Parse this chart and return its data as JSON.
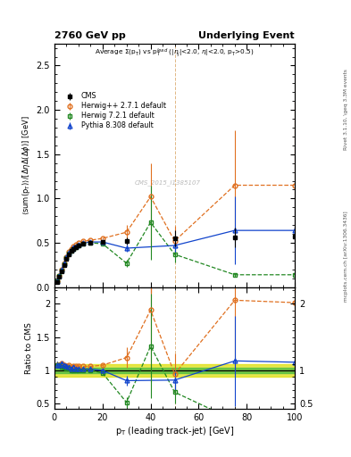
{
  "title_left": "2760 GeV pp",
  "title_right": "Underlying Event",
  "plot_title": "Average \\Sigma(p_{T}) vs p_{T}^{lead} (|\\eta_{j}|<2.0, \\eta|<2.0, p_{T}>0.5)",
  "ylabel_main": "\\langle sum(p_{T}) \\rangle / [\\Delta\\eta\\Delta(\\Delta\\phi)] [GeV]",
  "ylabel_ratio": "Ratio to CMS",
  "xlabel": "p_{T} (leading track-jet) [GeV]",
  "right_label_top": "Rivet 3.1.10, \\geq 3.3M events",
  "right_label_bottom": "mcplots.cern.ch [arXiv:1306.3436]",
  "watermark": "CMS_2015_I1385107",
  "xlim": [
    0,
    100
  ],
  "ylim_main": [
    0,
    2.75
  ],
  "ylim_ratio": [
    0.42,
    2.25
  ],
  "cms_data": {
    "x": [
      1,
      2,
      3,
      4,
      5,
      6,
      7,
      8,
      9,
      10,
      12,
      15,
      20,
      30,
      50,
      75,
      100
    ],
    "y": [
      0.06,
      0.12,
      0.18,
      0.25,
      0.32,
      0.37,
      0.41,
      0.43,
      0.45,
      0.47,
      0.49,
      0.5,
      0.51,
      0.52,
      0.55,
      0.56,
      0.57
    ],
    "yerr": [
      0.005,
      0.01,
      0.01,
      0.01,
      0.01,
      0.01,
      0.01,
      0.01,
      0.01,
      0.01,
      0.01,
      0.01,
      0.015,
      0.04,
      0.09,
      0.11,
      0.11
    ],
    "color": "#000000",
    "marker": "s",
    "label": "CMS"
  },
  "herwig_pp": {
    "x": [
      1,
      2,
      3,
      4,
      5,
      6,
      7,
      8,
      9,
      10,
      12,
      15,
      20,
      30,
      40,
      50,
      75,
      100
    ],
    "y": [
      0.065,
      0.13,
      0.2,
      0.27,
      0.34,
      0.4,
      0.43,
      0.46,
      0.48,
      0.5,
      0.52,
      0.53,
      0.55,
      0.62,
      1.02,
      0.52,
      1.15,
      1.15
    ],
    "yerr_lo": [
      0.003,
      0.005,
      0.005,
      0.005,
      0.005,
      0.005,
      0.005,
      0.005,
      0.005,
      0.005,
      0.005,
      0.005,
      0.01,
      0.08,
      0.58,
      0.17,
      0.62,
      0.95
    ],
    "yerr_hi": [
      0.003,
      0.005,
      0.005,
      0.005,
      0.005,
      0.005,
      0.005,
      0.005,
      0.005,
      0.005,
      0.005,
      0.005,
      0.01,
      0.08,
      0.38,
      0.17,
      0.62,
      0.95
    ],
    "color": "#e07020",
    "marker": "o",
    "label": "Herwig++ 2.7.1 default"
  },
  "herwig7": {
    "x": [
      1,
      2,
      3,
      4,
      5,
      6,
      7,
      8,
      9,
      10,
      12,
      15,
      20,
      30,
      40,
      50,
      75,
      100
    ],
    "y": [
      0.065,
      0.13,
      0.19,
      0.26,
      0.33,
      0.38,
      0.41,
      0.43,
      0.45,
      0.47,
      0.49,
      0.5,
      0.49,
      0.27,
      0.73,
      0.37,
      0.14,
      0.14
    ],
    "yerr_lo": [
      0.003,
      0.005,
      0.005,
      0.005,
      0.005,
      0.005,
      0.005,
      0.005,
      0.005,
      0.005,
      0.005,
      0.005,
      0.01,
      0.04,
      0.42,
      0.09,
      0.02,
      0.02
    ],
    "yerr_hi": [
      0.003,
      0.005,
      0.005,
      0.005,
      0.005,
      0.005,
      0.005,
      0.005,
      0.005,
      0.005,
      0.005,
      0.005,
      0.01,
      0.04,
      0.42,
      0.09,
      0.02,
      0.02
    ],
    "color": "#228822",
    "marker": "s",
    "label": "Herwig 7.2.1 default"
  },
  "pythia": {
    "x": [
      1,
      2,
      3,
      4,
      5,
      6,
      7,
      8,
      9,
      10,
      12,
      15,
      20,
      30,
      50,
      75,
      100
    ],
    "y": [
      0.065,
      0.13,
      0.2,
      0.27,
      0.34,
      0.39,
      0.42,
      0.45,
      0.46,
      0.48,
      0.5,
      0.51,
      0.51,
      0.44,
      0.47,
      0.64,
      0.64
    ],
    "yerr_lo": [
      0.003,
      0.005,
      0.005,
      0.005,
      0.005,
      0.005,
      0.005,
      0.005,
      0.005,
      0.005,
      0.005,
      0.005,
      0.01,
      0.04,
      0.08,
      0.38,
      0.38
    ],
    "yerr_hi": [
      0.003,
      0.005,
      0.005,
      0.005,
      0.005,
      0.005,
      0.005,
      0.005,
      0.005,
      0.005,
      0.005,
      0.005,
      0.01,
      0.04,
      0.08,
      0.38,
      0.38
    ],
    "color": "#1144cc",
    "marker": "^",
    "label": "Pythia 8.308 default"
  },
  "ratio_band_yellow": {
    "color": "#dddd00",
    "alpha": 0.7,
    "ylo": 0.9,
    "yhi": 1.1
  },
  "ratio_band_green": {
    "color": "#44bb44",
    "alpha": 0.7,
    "ylo": 0.96,
    "yhi": 1.04
  },
  "vline_x": 50,
  "vline_color": "#cc8833",
  "bg_color": "#ffffff"
}
